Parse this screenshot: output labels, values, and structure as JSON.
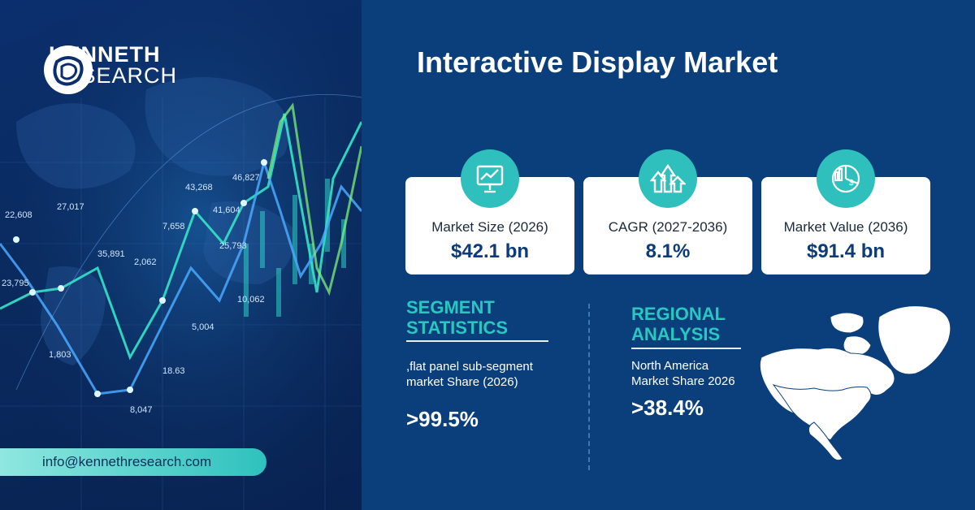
{
  "brand": {
    "line1": "KENNETH",
    "line2": "RESEARCH"
  },
  "contact": {
    "email": "info@kennethresearch.com"
  },
  "title": "Interactive Display Market",
  "background_chart_labels": [
    "22,608",
    "27,017",
    "23,795",
    "35,891",
    "2,062",
    "7,658",
    "43,268",
    "41,604",
    "46,827",
    "25,793",
    "1,803",
    "5,004",
    "18.63",
    "8,047",
    "10,062"
  ],
  "cards": [
    {
      "label": "Market Size (2026)",
      "value": "$42.1 bn",
      "icon": "presentation-chart-icon"
    },
    {
      "label": "CAGR (2027-2036)",
      "value": "8.1%",
      "icon": "growth-arrows-icon"
    },
    {
      "label": "Market Value (2036)",
      "value": "$91.4 bn",
      "icon": "pie-chart-dollar-icon"
    }
  ],
  "segment": {
    "heading_line1": "SEGMENT",
    "heading_line2": "STATISTICS",
    "line1": ",flat panel sub-segment",
    "line2": "market Share (2026)",
    "value": ">99.5%"
  },
  "regional": {
    "heading_line1": "REGIONAL",
    "heading_line2": "ANALYSIS",
    "line1": "North America",
    "line2": "Market Share 2026",
    "value": ">38.4%"
  },
  "colors": {
    "accent": "#2fbfbd",
    "background": "#0b3f7c",
    "card": "#ffffff",
    "value_text": "#0c3b78"
  }
}
